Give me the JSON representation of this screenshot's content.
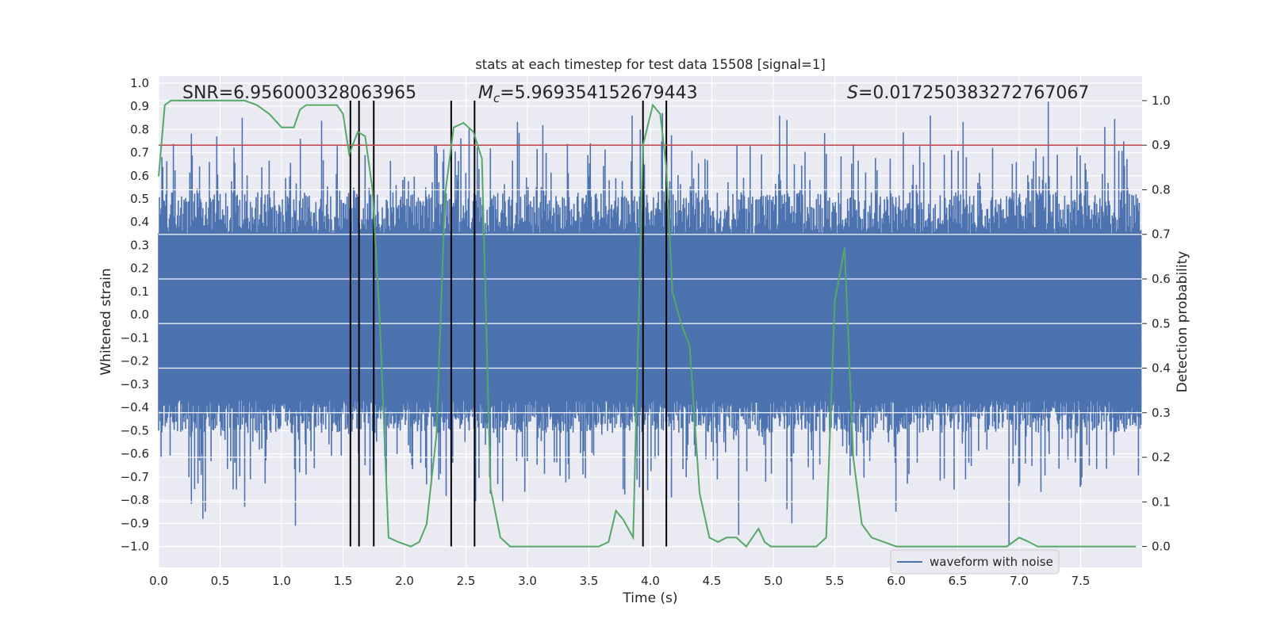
{
  "chart_data": {
    "type": "line",
    "title": "stats at each timestep for test data 15508 [signal=1]",
    "xlabel": "Time (s)",
    "ylabel_left": "Whitened strain",
    "ylabel_right": "Detection probability",
    "xlim": [
      0.0,
      8.0
    ],
    "ylim_left": [
      -1.09,
      1.03
    ],
    "ylim_right": [
      -0.047,
      1.055
    ],
    "xticks": [
      "0.0",
      "0.5",
      "1.0",
      "1.5",
      "2.0",
      "2.5",
      "3.0",
      "3.5",
      "4.0",
      "4.5",
      "5.0",
      "5.5",
      "6.0",
      "6.5",
      "7.0",
      "7.5"
    ],
    "yticks_left": [
      "1.0",
      "0.9",
      "0.8",
      "0.7",
      "0.6",
      "0.5",
      "0.4",
      "0.3",
      "0.2",
      "0.1",
      "0.0",
      "-0.1",
      "-0.2",
      "-0.3",
      "-0.4",
      "-0.5",
      "-0.6",
      "-0.7",
      "-0.8",
      "-0.9",
      "-1.0"
    ],
    "yticks_right": [
      "1.0",
      "0.9",
      "0.8",
      "0.7",
      "0.6",
      "0.5",
      "0.4",
      "0.3",
      "0.2",
      "0.1",
      "0.0"
    ],
    "annotations": {
      "snr": "SNR=6.956000328063965",
      "mc_symbol": "M",
      "mc_sub": "c",
      "mc_value": "=5.969354152679443",
      "s_symbol": "S",
      "s_value": "=0.017250383272767067"
    },
    "legend": {
      "label": "waveform with noise",
      "location": "lower right"
    },
    "threshold": {
      "probability": 0.9,
      "color": "#c44e52"
    },
    "vertical_markers": [
      1.56,
      1.63,
      1.75,
      2.38,
      2.57,
      3.94,
      4.13
    ],
    "waveform": {
      "name": "waveform with noise",
      "color": "#4c72b0",
      "t_start": 0.0,
      "t_end": 7.99,
      "samples": 1200,
      "envelope_core": 0.35,
      "max": 0.92,
      "min": -0.99,
      "peaks": [
        {
          "t": 0.68,
          "v": 0.85
        },
        {
          "t": 1.15,
          "v": 0.76
        },
        {
          "t": 3.85,
          "v": 0.86
        },
        {
          "t": 3.92,
          "v": 0.8
        },
        {
          "t": 4.1,
          "v": 0.87
        },
        {
          "t": 4.72,
          "v": 0.84
        },
        {
          "t": 5.05,
          "v": 0.86
        },
        {
          "t": 6.28,
          "v": 0.86
        },
        {
          "t": 7.24,
          "v": 0.92
        },
        {
          "t": 7.7,
          "v": 0.81
        },
        {
          "t": 0.36,
          "v": -0.88
        },
        {
          "t": 0.38,
          "v": -0.85
        },
        {
          "t": 1.11,
          "v": -0.91
        },
        {
          "t": 4.72,
          "v": -0.95
        },
        {
          "t": 6.92,
          "v": -0.99
        },
        {
          "t": 5.15,
          "v": -0.9
        },
        {
          "t": 6.0,
          "v": -0.85
        }
      ]
    },
    "detection_probability": {
      "name": "detection probability",
      "color": "#55a868",
      "t": [
        0.0,
        0.05,
        0.1,
        0.2,
        0.3,
        0.4,
        0.5,
        0.6,
        0.7,
        0.8,
        0.9,
        1.0,
        1.1,
        1.15,
        1.2,
        1.3,
        1.4,
        1.45,
        1.5,
        1.55,
        1.62,
        1.68,
        1.74,
        1.8,
        1.87,
        1.95,
        2.05,
        2.12,
        2.18,
        2.26,
        2.33,
        2.4,
        2.48,
        2.56,
        2.63,
        2.7,
        2.78,
        2.86,
        2.95,
        3.05,
        3.2,
        3.35,
        3.5,
        3.58,
        3.66,
        3.72,
        3.78,
        3.86,
        3.94,
        4.02,
        4.08,
        4.13,
        4.18,
        4.25,
        4.32,
        4.4,
        4.48,
        4.55,
        4.62,
        4.7,
        4.78,
        4.83,
        4.88,
        4.93,
        4.98,
        5.05,
        5.15,
        5.25,
        5.35,
        5.43,
        5.5,
        5.58,
        5.65,
        5.72,
        5.8,
        5.9,
        6.0,
        6.2,
        6.4,
        6.6,
        6.8,
        6.9,
        7.0,
        7.08,
        7.15,
        7.3,
        7.5,
        7.7,
        7.95
      ],
      "p": [
        0.83,
        0.99,
        1.0,
        1.0,
        1.0,
        1.0,
        1.0,
        1.0,
        1.0,
        0.99,
        0.97,
        0.94,
        0.94,
        0.98,
        0.99,
        0.99,
        0.99,
        0.99,
        0.97,
        0.88,
        0.93,
        0.92,
        0.8,
        0.5,
        0.02,
        0.01,
        0.0,
        0.01,
        0.05,
        0.25,
        0.79,
        0.94,
        0.95,
        0.93,
        0.87,
        0.13,
        0.02,
        0.0,
        0.0,
        0.0,
        0.0,
        0.0,
        0.0,
        0.0,
        0.01,
        0.08,
        0.06,
        0.02,
        0.9,
        0.99,
        0.97,
        0.85,
        0.57,
        0.5,
        0.45,
        0.12,
        0.02,
        0.01,
        0.02,
        0.02,
        0.0,
        0.02,
        0.04,
        0.01,
        0.0,
        0.0,
        0.0,
        0.0,
        0.0,
        0.02,
        0.55,
        0.67,
        0.2,
        0.05,
        0.02,
        0.01,
        0.0,
        0.0,
        0.0,
        0.0,
        0.0,
        0.0,
        0.02,
        0.01,
        0.0,
        0.0,
        0.0,
        0.0,
        0.0
      ]
    },
    "colors": {
      "axes_bg": "#eaeaf2",
      "grid": "#ffffff",
      "marker": "#000000"
    }
  }
}
